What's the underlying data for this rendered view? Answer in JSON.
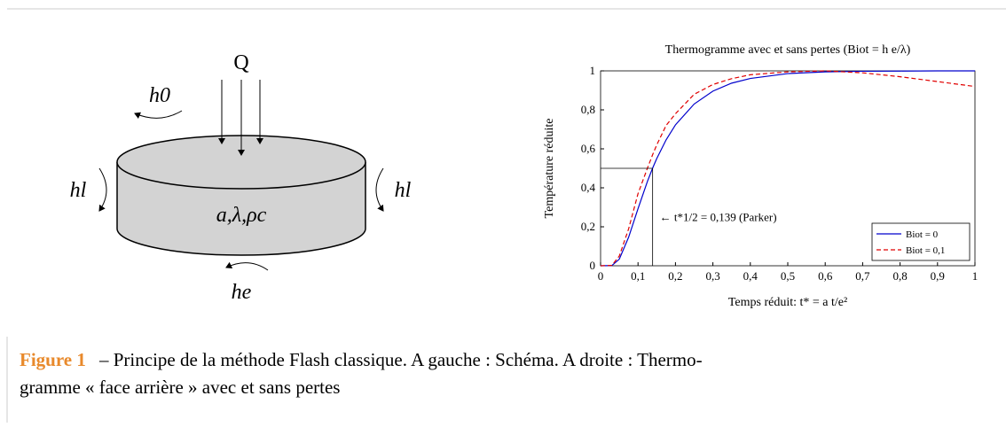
{
  "diagram": {
    "heat": "Q",
    "h_top": "h0",
    "h_left": "hl",
    "h_right": "hl",
    "h_bottom": "he",
    "properties": "a,λ,ρc"
  },
  "chart_data": {
    "type": "line",
    "title": "Thermogramme avec et sans pertes (Biot = h e/λ)",
    "x_label": "Temps réduit: t* = a t/e²",
    "y_label": "Température réduite",
    "x": [
      0,
      0.03,
      0.05,
      0.075,
      0.1,
      0.125,
      0.139,
      0.15,
      0.175,
      0.2,
      0.25,
      0.3,
      0.35,
      0.4,
      0.5,
      0.6,
      0.7,
      0.8,
      0.9,
      1
    ],
    "series": [
      {
        "name": "Biot = 0",
        "color": "#0000cc",
        "dash": false,
        "values": [
          0,
          0.001,
          0.034,
          0.147,
          0.293,
          0.432,
          0.501,
          0.55,
          0.646,
          0.723,
          0.83,
          0.896,
          0.937,
          0.961,
          0.986,
          0.995,
          0.998,
          0.999,
          1,
          1
        ]
      },
      {
        "name": "Biot = 0,1",
        "color": "#e00000",
        "dash": true,
        "values": [
          0,
          0.002,
          0.05,
          0.19,
          0.37,
          0.5,
          0.57,
          0.62,
          0.72,
          0.78,
          0.88,
          0.93,
          0.96,
          0.98,
          0.995,
          1,
          0.99,
          0.97,
          0.945,
          0.92
        ]
      }
    ],
    "xlim": [
      0,
      1
    ],
    "ylim": [
      0,
      1
    ],
    "xticks": [
      0,
      {
        "value": 0.1,
        "label": "0,1"
      },
      {
        "value": 0.2,
        "label": "0,2"
      },
      {
        "value": 0.3,
        "label": "0,3"
      },
      {
        "value": 0.4,
        "label": "0,4"
      },
      {
        "value": 0.5,
        "label": "0,5"
      },
      {
        "value": 0.6,
        "label": "0,6"
      },
      {
        "value": 0.7,
        "label": "0,7"
      },
      {
        "value": 0.8,
        "label": "0,8"
      },
      {
        "value": 0.9,
        "label": "0,9"
      },
      1
    ],
    "yticks": [
      0,
      {
        "value": 0.2,
        "label": "0,2"
      },
      {
        "value": 0.4,
        "label": "0,4"
      },
      {
        "value": 0.6,
        "label": "0,6"
      },
      {
        "value": 0.8,
        "label": "0,8"
      },
      1
    ],
    "legend": "lower right",
    "annotation": {
      "x": 0.139,
      "y": 0.5,
      "label": "← t*1/2 = 0,139 (Parker)"
    }
  },
  "caption": {
    "label": "Figure 1",
    "lines": [
      "– Principe de la méthode Flash classique. A gauche : Schéma. A droite : Thermo-",
      "gramme « face arrière » avec et sans pertes"
    ]
  }
}
